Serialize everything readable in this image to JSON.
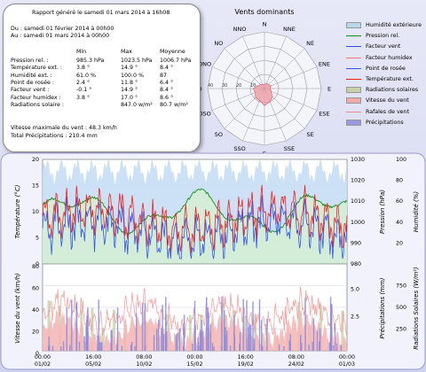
{
  "report": {
    "title": "Rapport généré le samedi 01 mars 2014 à 16h08",
    "from": "Du : samedi 01 février 2014 à 00h00",
    "to": "Au : samedi 01 mars 2014 à 00h00",
    "headers": [
      "Min",
      "Max",
      "Moyenne"
    ],
    "rows": [
      {
        "label": "Pression rel. :",
        "min": "985.3 hPa",
        "max": "1023.5 hPa",
        "avg": "1006.7 hPa"
      },
      {
        "label": "Température ext. :",
        "min": "3.8 °",
        "max": "14.9 °",
        "avg": "8.4 °"
      },
      {
        "label": "Humidité ext. :",
        "min": "61.0 %",
        "max": "100.0 %",
        "avg": "87"
      },
      {
        "label": "Point de rosée :",
        "min": "2.4 °",
        "max": "11.8 °",
        "avg": "6.4 °"
      },
      {
        "label": "Facteur vent :",
        "min": "-0.1 °",
        "max": "14.9 °",
        "avg": "8.4 °"
      },
      {
        "label": "Facteur humidex :",
        "min": "3.8 °",
        "max": "17.0 °",
        "avg": "8.6 °"
      },
      {
        "label": "Radiations solaire :",
        "min": "",
        "max": "847.0 w/m²",
        "avg": "80.7 w/m²"
      }
    ],
    "wind_max": "Vitesse maximale du vent : 48.3 km/h",
    "rain_total": "Total Précipitations : 210.4 mm"
  },
  "windrose": {
    "title": "Vents dominants",
    "directions": [
      "N",
      "NNE",
      "NE",
      "ENE",
      "E",
      "ESE",
      "SE",
      "SSE",
      "S",
      "SSO",
      "SO",
      "OSO",
      "O",
      "ONO",
      "NO",
      "NNO"
    ],
    "ring_labels": [
      "10",
      "20",
      "30",
      "40"
    ],
    "frequencies": [
      3,
      4,
      4,
      5,
      4,
      5,
      8,
      10,
      12,
      9,
      9,
      7,
      8,
      5,
      4,
      3
    ]
  },
  "legend": [
    {
      "label": "Humidité extérieure",
      "color": "#b8d8ea",
      "kind": "fill"
    },
    {
      "label": "Pression rel.",
      "color": "#1a8a1a",
      "kind": "line"
    },
    {
      "label": "Facteur vent",
      "color": "#3344dd",
      "kind": "line"
    },
    {
      "label": "Facteur humidex",
      "color": "#ee7777",
      "kind": "line"
    },
    {
      "label": "Point de rosée",
      "color": "#3355ee",
      "kind": "line"
    },
    {
      "label": "Température ext.",
      "color": "#ee2222",
      "kind": "line"
    },
    {
      "label": "Radiations solaires",
      "color": "#c8cfa8",
      "kind": "fill"
    },
    {
      "label": "Vitesse du vent",
      "color": "#f0a8a8",
      "kind": "fill"
    },
    {
      "label": "Rafales de vent",
      "color": "#ee8888",
      "kind": "line"
    },
    {
      "label": "Précipitations",
      "color": "#9999dd",
      "kind": "fill"
    }
  ],
  "chart_top": {
    "ylabel_left": "Température (°C)",
    "ylabel_right1": "Pression (hPa)",
    "ylabel_right2": "Humidité (%)",
    "left_ticks": [
      "20",
      "15",
      "10",
      "5",
      "0"
    ],
    "pressure_ticks": [
      "1030",
      "1020",
      "1010",
      "1000",
      "990",
      "980"
    ],
    "humidity_ticks": [
      "100",
      "80",
      "60",
      "40",
      "20"
    ]
  },
  "chart_bottom": {
    "ylabel_left": "Vitesse du vent (km/h)",
    "ylabel_right1": "Précipitations (mm)",
    "ylabel_right2": "Radiations Solaires (W/m²)",
    "left_ticks": [
      "80",
      "60",
      "40",
      "20",
      "0"
    ],
    "rain_ticks": [
      "5.0",
      "2.5"
    ],
    "solar_ticks": [
      "750",
      "500",
      "250"
    ]
  },
  "x_axis": {
    "labels": [
      "00:00",
      "16:00",
      "08:00",
      "00:00",
      "16:00",
      "08:00",
      "00:00"
    ],
    "dates": [
      "01/02",
      "05/02",
      "10/02",
      "15/02",
      "19/02",
      "24/02",
      "01/03"
    ]
  },
  "colors": {
    "temperature": "#ee2222",
    "dewpoint": "#3355ee",
    "pressure": "#1a8a1a",
    "humidity_fill": "#c4dcf4",
    "wind_fill": "#f4b4b4",
    "gust_line": "#f09a9a",
    "rain_fill": "#8888dd",
    "rose_fill": "#ee9aa0"
  }
}
